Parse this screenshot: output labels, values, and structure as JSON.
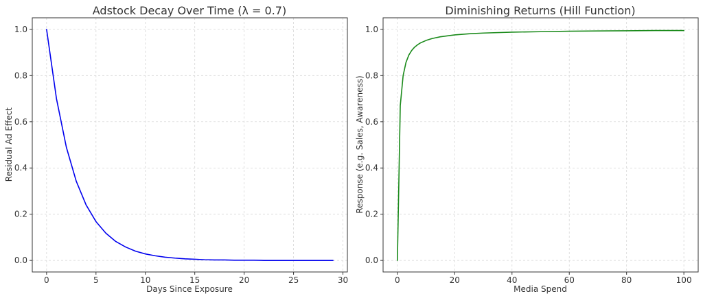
{
  "chart_data": [
    {
      "type": "line",
      "title": "Adstock Decay Over Time (λ = 0.7)",
      "xlabel": "Days Since Exposure",
      "ylabel": "Residual Ad Effect",
      "xlim": [
        -1.45,
        30.45
      ],
      "ylim": [
        -0.05,
        1.05
      ],
      "xticks": [
        0,
        5,
        10,
        15,
        20,
        25,
        30
      ],
      "yticks": [
        0.0,
        0.2,
        0.4,
        0.6,
        0.8,
        1.0
      ],
      "grid": true,
      "color": "#0000ee",
      "series": [
        {
          "x": [
            0,
            1,
            2,
            3,
            4,
            5,
            6,
            7,
            8,
            9,
            10,
            11,
            12,
            13,
            14,
            15,
            16,
            17,
            18,
            19,
            20,
            21,
            22,
            23,
            24,
            25,
            26,
            27,
            28,
            29
          ],
          "values": [
            1.0,
            0.7,
            0.49,
            0.343,
            0.24,
            0.168,
            0.118,
            0.082,
            0.058,
            0.04,
            0.028,
            0.02,
            0.014,
            0.01,
            0.007,
            0.005,
            0.003,
            0.002,
            0.002,
            0.001,
            0.001,
            0.001,
            0.0,
            0.0,
            0.0,
            0.0,
            0.0,
            0.0,
            0.0,
            0.0
          ]
        }
      ]
    },
    {
      "type": "line",
      "title": "Diminishing Returns (Hill Function)",
      "xlabel": "Media Spend",
      "ylabel": "Response (e.g. Sales, Awareness)",
      "xlim": [
        -5,
        105
      ],
      "ylim": [
        -0.05,
        1.05
      ],
      "xticks": [
        0,
        20,
        40,
        60,
        80,
        100
      ],
      "yticks": [
        0.0,
        0.2,
        0.4,
        0.6,
        0.8,
        1.0
      ],
      "grid": true,
      "color": "#1a8a1a",
      "series": [
        {
          "x": [
            0,
            1,
            2,
            3,
            4,
            5,
            6,
            7,
            8,
            10,
            12,
            15,
            20,
            25,
            30,
            40,
            50,
            60,
            70,
            80,
            90,
            100
          ],
          "values": [
            0.0,
            0.67,
            0.8,
            0.857,
            0.889,
            0.909,
            0.923,
            0.933,
            0.941,
            0.952,
            0.96,
            0.968,
            0.976,
            0.981,
            0.984,
            0.988,
            0.99,
            0.992,
            0.993,
            0.994,
            0.995,
            0.995
          ]
        }
      ]
    }
  ]
}
